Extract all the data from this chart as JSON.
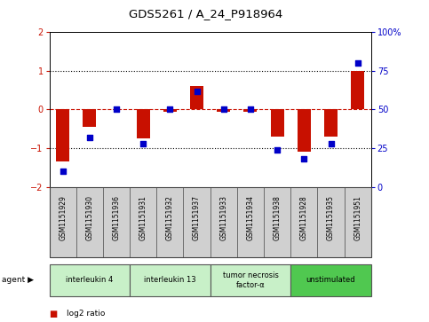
{
  "title": "GDS5261 / A_24_P918964",
  "samples": [
    "GSM1151929",
    "GSM1151930",
    "GSM1151936",
    "GSM1151931",
    "GSM1151932",
    "GSM1151937",
    "GSM1151933",
    "GSM1151934",
    "GSM1151938",
    "GSM1151928",
    "GSM1151935",
    "GSM1151951"
  ],
  "log2_ratio": [
    -1.35,
    -0.45,
    0.0,
    -0.75,
    -0.05,
    0.6,
    -0.05,
    -0.05,
    -0.7,
    -1.1,
    -0.7,
    1.0
  ],
  "percentile": [
    10,
    32,
    50,
    28,
    50,
    62,
    50,
    50,
    24,
    18,
    28,
    80
  ],
  "agents": [
    {
      "label": "interleukin 4",
      "start": 0,
      "end": 2,
      "color": "#c8f0c8"
    },
    {
      "label": "interleukin 13",
      "start": 3,
      "end": 5,
      "color": "#c8f0c8"
    },
    {
      "label": "tumor necrosis\nfactor-α",
      "start": 6,
      "end": 8,
      "color": "#c8f0c8"
    },
    {
      "label": "unstimulated",
      "start": 9,
      "end": 11,
      "color": "#50c850"
    }
  ],
  "bar_color": "#c81000",
  "dot_color": "#0000c8",
  "ylim": [
    -2,
    2
  ],
  "y2lim": [
    0,
    100
  ],
  "yticks_left": [
    -2,
    -1,
    0,
    1,
    2
  ],
  "yticks_right": [
    0,
    25,
    50,
    75,
    100
  ],
  "background_color": "#ffffff",
  "plot_bg": "#ffffff",
  "sample_box_color": "#d0d0d0",
  "bar_width": 0.5,
  "dot_size": 18
}
